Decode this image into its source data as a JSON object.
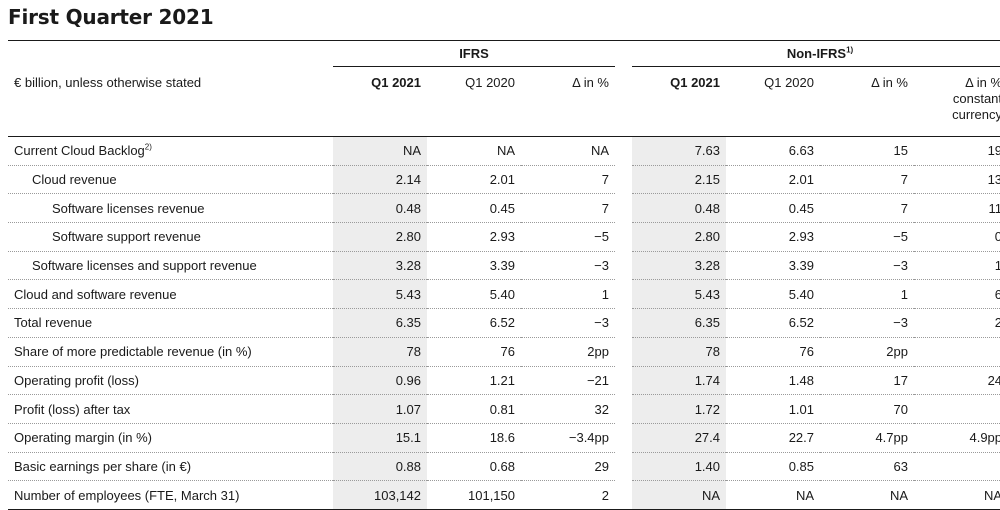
{
  "title": "First Quarter 2021",
  "groups": {
    "ifrs": "IFRS",
    "non_ifrs": "Non-IFRS",
    "non_ifrs_footnote": "1)"
  },
  "headers": {
    "label": "€ billion, unless otherwise stated",
    "ifrs": [
      "Q1 2021",
      "Q1 2020",
      "Δ in %"
    ],
    "non_ifrs": [
      "Q1 2021",
      "Q1 2020",
      "Δ in %",
      "Δ in % constant currency"
    ]
  },
  "rows": [
    {
      "label": "Current Cloud Backlog",
      "footnote": "2)",
      "ifrs": [
        "NA",
        "NA",
        "NA"
      ],
      "non_ifrs": [
        "7.63",
        "6.63",
        "15",
        "19"
      ]
    },
    {
      "label": "Cloud revenue",
      "footnote": "",
      "ifrs": [
        "2.14",
        "2.01",
        "7"
      ],
      "non_ifrs": [
        "2.15",
        "2.01",
        "7",
        "13"
      ]
    },
    {
      "label": "Software licenses revenue",
      "footnote": "",
      "ifrs": [
        "0.48",
        "0.45",
        "7"
      ],
      "non_ifrs": [
        "0.48",
        "0.45",
        "7",
        "11"
      ]
    },
    {
      "label": "Software support revenue",
      "footnote": "",
      "ifrs": [
        "2.80",
        "2.93",
        "−5"
      ],
      "non_ifrs": [
        "2.80",
        "2.93",
        "−5",
        "0"
      ]
    },
    {
      "label": "Software licenses and support revenue",
      "footnote": "",
      "ifrs": [
        "3.28",
        "3.39",
        "−3"
      ],
      "non_ifrs": [
        "3.28",
        "3.39",
        "−3",
        "1"
      ]
    },
    {
      "label": "Cloud and software revenue",
      "footnote": "",
      "ifrs": [
        "5.43",
        "5.40",
        "1"
      ],
      "non_ifrs": [
        "5.43",
        "5.40",
        "1",
        "6"
      ]
    },
    {
      "label": "Total revenue",
      "footnote": "",
      "ifrs": [
        "6.35",
        "6.52",
        "−3"
      ],
      "non_ifrs": [
        "6.35",
        "6.52",
        "−3",
        "2"
      ]
    },
    {
      "label": "Share of more predictable revenue (in %)",
      "footnote": "",
      "ifrs": [
        "78",
        "76",
        "2pp"
      ],
      "non_ifrs": [
        "78",
        "76",
        "2pp",
        ""
      ]
    },
    {
      "label": "Operating profit (loss)",
      "footnote": "",
      "ifrs": [
        "0.96",
        "1.21",
        "−21"
      ],
      "non_ifrs": [
        "1.74",
        "1.48",
        "17",
        "24"
      ]
    },
    {
      "label": "Profit (loss) after tax",
      "footnote": "",
      "ifrs": [
        "1.07",
        "0.81",
        "32"
      ],
      "non_ifrs": [
        "1.72",
        "1.01",
        "70",
        ""
      ]
    },
    {
      "label": "Operating margin (in %)",
      "footnote": "",
      "ifrs": [
        "15.1",
        "18.6",
        "−3.4pp"
      ],
      "non_ifrs": [
        "27.4",
        "22.7",
        "4.7pp",
        "4.9pp"
      ]
    },
    {
      "label": "Basic earnings per share (in €)",
      "footnote": "",
      "ifrs": [
        "0.88",
        "0.68",
        "29"
      ],
      "non_ifrs": [
        "1.40",
        "0.85",
        "63",
        ""
      ]
    },
    {
      "label": "Number of employees (FTE, March 31)",
      "footnote": "",
      "ifrs": [
        "103,142",
        "101,150",
        "2"
      ],
      "non_ifrs": [
        "NA",
        "NA",
        "NA",
        "NA"
      ]
    }
  ]
}
